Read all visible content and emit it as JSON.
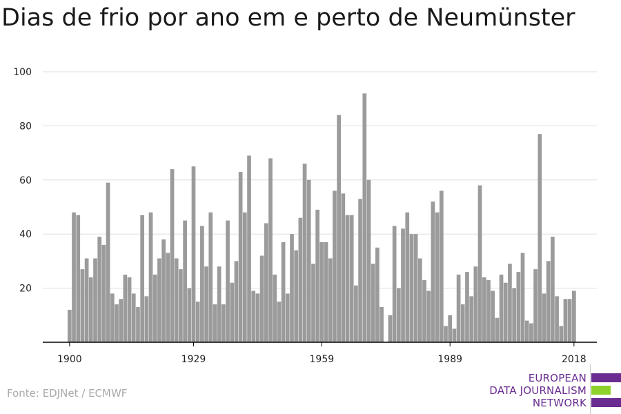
{
  "title": "Dias de frio por ano em e perto de Neumünster",
  "source": "Fonte: EDJNet / ECMWF",
  "logo": {
    "lines": [
      "EUROPEAN",
      "DATA JOURNALISM",
      "NETWORK"
    ],
    "colors": [
      "#6a2c91",
      "#8fd12b",
      "#6a2c91"
    ]
  },
  "colors": {
    "bar": "#9b9b9b",
    "grid": "#dddddd",
    "axis": "#000000"
  },
  "chart_data": {
    "type": "bar",
    "title": "Dias de frio por ano em e perto de Neumünster",
    "xlabel": "",
    "ylabel": "",
    "x_range": [
      1900,
      2018
    ],
    "ylim": [
      0,
      100
    ],
    "y_ticks": [
      20,
      40,
      60,
      80,
      100
    ],
    "x_ticks": [
      1900,
      1929,
      1959,
      1989,
      2018
    ],
    "grid": true,
    "legend": "none",
    "x": [
      1900,
      1901,
      1902,
      1903,
      1904,
      1905,
      1906,
      1907,
      1908,
      1909,
      1910,
      1911,
      1912,
      1913,
      1914,
      1915,
      1916,
      1917,
      1918,
      1919,
      1920,
      1921,
      1922,
      1923,
      1924,
      1925,
      1926,
      1927,
      1928,
      1929,
      1930,
      1931,
      1932,
      1933,
      1934,
      1935,
      1936,
      1937,
      1938,
      1939,
      1940,
      1941,
      1942,
      1943,
      1944,
      1945,
      1946,
      1947,
      1948,
      1949,
      1950,
      1951,
      1952,
      1953,
      1954,
      1955,
      1956,
      1957,
      1958,
      1959,
      1960,
      1961,
      1962,
      1963,
      1964,
      1965,
      1966,
      1967,
      1968,
      1969,
      1970,
      1971,
      1972,
      1973,
      1974,
      1975,
      1976,
      1977,
      1978,
      1979,
      1980,
      1981,
      1982,
      1983,
      1984,
      1985,
      1986,
      1987,
      1988,
      1989,
      1990,
      1991,
      1992,
      1993,
      1994,
      1995,
      1996,
      1997,
      1998,
      1999,
      2000,
      2001,
      2002,
      2003,
      2004,
      2005,
      2006,
      2007,
      2008,
      2009,
      2010,
      2011,
      2012,
      2013,
      2014,
      2015,
      2016,
      2017,
      2018
    ],
    "values": [
      12,
      48,
      47,
      27,
      31,
      24,
      31,
      39,
      36,
      59,
      18,
      14,
      16,
      25,
      24,
      18,
      13,
      47,
      17,
      48,
      25,
      31,
      38,
      33,
      64,
      31,
      27,
      45,
      20,
      65,
      15,
      43,
      28,
      48,
      14,
      28,
      14,
      45,
      22,
      30,
      63,
      48,
      69,
      19,
      18,
      32,
      44,
      68,
      25,
      15,
      37,
      18,
      40,
      34,
      46,
      66,
      60,
      29,
      49,
      37,
      37,
      31,
      56,
      84,
      55,
      47,
      47,
      21,
      53,
      92,
      60,
      29,
      35,
      13,
      0,
      10,
      43,
      20,
      42,
      48,
      40,
      40,
      31,
      23,
      19,
      52,
      48,
      56,
      6,
      10,
      5,
      25,
      14,
      26,
      17,
      28,
      58,
      24,
      23,
      19,
      9,
      25,
      22,
      29,
      20,
      26,
      33,
      8,
      7,
      27,
      77,
      18,
      30,
      39,
      17,
      6,
      16,
      16,
      19
    ]
  }
}
